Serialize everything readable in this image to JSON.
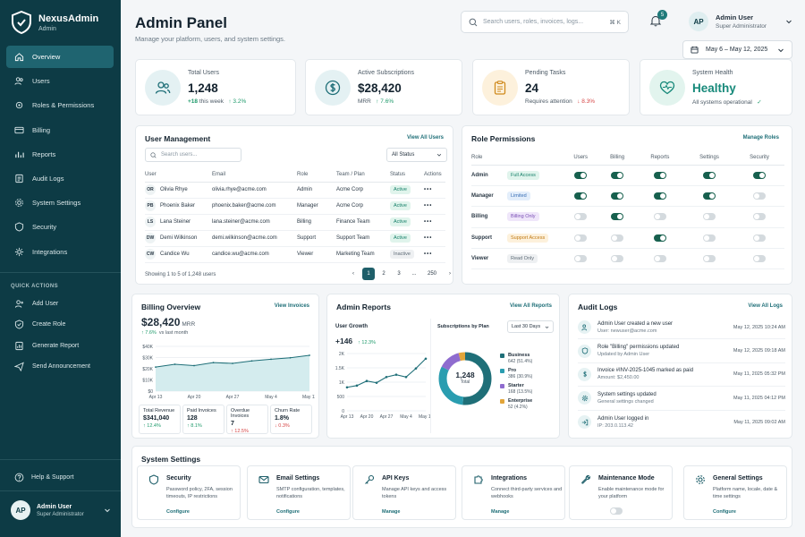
{
  "brand": {
    "name": "NexusAdmin",
    "sub": "Admin"
  },
  "nav": [
    {
      "label": "Overview",
      "icon": "home-icon"
    },
    {
      "label": "Users",
      "icon": "users-icon"
    },
    {
      "label": "Roles & Permissions",
      "icon": "key-icon"
    },
    {
      "label": "Billing",
      "icon": "card-icon"
    },
    {
      "label": "Reports",
      "icon": "chart-icon"
    },
    {
      "label": "Audit Logs",
      "icon": "log-icon"
    },
    {
      "label": "System Settings",
      "icon": "gear-icon"
    },
    {
      "label": "Security",
      "icon": "shield-icon"
    },
    {
      "label": "Integrations",
      "icon": "plug-icon"
    }
  ],
  "quick_actions": {
    "title": "QUICK ACTIONS",
    "items": [
      {
        "label": "Add User"
      },
      {
        "label": "Create Role"
      },
      {
        "label": "Generate Report"
      },
      {
        "label": "Send Announcement"
      }
    ]
  },
  "help": "Help & Support",
  "user": {
    "initials": "AP",
    "name": "Admin User",
    "role": "Super Administrator"
  },
  "header": {
    "title": "Admin Panel",
    "subtitle": "Manage your platform, users, and system settings.",
    "search_placeholder": "Search users, roles, invoices, logs...",
    "search_kbd": "⌘ K",
    "notifications": "5",
    "date_range": "May 6 – May 12, 2025"
  },
  "stats": [
    {
      "label": "Total Users",
      "value": "1,248",
      "foot_a": "+18",
      "foot_b": "this week",
      "foot_c": "↑ 3.2%"
    },
    {
      "label": "Active Subscriptions",
      "value": "$28,420",
      "foot_a": "MRR",
      "foot_b": "",
      "foot_c": "↑ 7.6%"
    },
    {
      "label": "Pending Tasks",
      "value": "24",
      "foot_a": "Requires attention",
      "foot_b": "",
      "foot_c": "↓ 8.3%"
    },
    {
      "label": "System Health",
      "value": "Healthy",
      "foot_a": "All systems operational",
      "foot_b": "",
      "foot_c": "✓"
    }
  ],
  "user_mgmt": {
    "title": "User Management",
    "link": "View All Users",
    "search_placeholder": "Search users...",
    "status_filter": "All Status",
    "columns": [
      "User",
      "Email",
      "Role",
      "Team / Plan",
      "Status",
      "Actions"
    ],
    "rows": [
      {
        "initials": "OR",
        "name": "Olivia Rhye",
        "email": "olivia.rhye@acme.com",
        "role": "Admin",
        "team": "Acme Corp",
        "status": "Active"
      },
      {
        "initials": "PB",
        "name": "Phoenix Baker",
        "email": "phoenix.baker@acme.com",
        "role": "Manager",
        "team": "Acme Corp",
        "status": "Active"
      },
      {
        "initials": "LS",
        "name": "Lana Steiner",
        "email": "lana.steiner@acme.com",
        "role": "Billing",
        "team": "Finance Team",
        "status": "Active"
      },
      {
        "initials": "DW",
        "name": "Demi Wilkinson",
        "email": "demi.wilkinson@acme.com",
        "role": "Support",
        "team": "Support Team",
        "status": "Active"
      },
      {
        "initials": "CW",
        "name": "Candice Wu",
        "email": "candice.wu@acme.com",
        "role": "Viewer",
        "team": "Marketing Team",
        "status": "Inactive"
      }
    ],
    "footer": "Showing 1 to 5 of 1,248 users",
    "pages": [
      "1",
      "2",
      "3",
      "...",
      "250"
    ]
  },
  "roles": {
    "title": "Role Permissions",
    "link": "Manage Roles",
    "columns": [
      "Role",
      "Users",
      "Billing",
      "Reports",
      "Settings",
      "Security"
    ],
    "rows": [
      {
        "role": "Admin",
        "badge": "Full Access",
        "bg": "#e0f4ec",
        "fg": "#17806a",
        "perms": [
          true,
          true,
          true,
          true,
          true
        ]
      },
      {
        "role": "Manager",
        "badge": "Limited",
        "bg": "#e3eefb",
        "fg": "#3a6fb5",
        "perms": [
          true,
          true,
          true,
          true,
          false
        ]
      },
      {
        "role": "Billing",
        "badge": "Billing Only",
        "bg": "#efe6fa",
        "fg": "#7a4fb5",
        "perms": [
          false,
          true,
          false,
          false,
          false
        ]
      },
      {
        "role": "Support",
        "badge": "Support Access",
        "bg": "#fdf1dc",
        "fg": "#c07a14",
        "perms": [
          false,
          false,
          true,
          false,
          false
        ]
      },
      {
        "role": "Viewer",
        "badge": "Read Only",
        "bg": "#eef0f2",
        "fg": "#5e6b76",
        "perms": [
          false,
          false,
          false,
          false,
          false
        ]
      }
    ]
  },
  "billing": {
    "title": "Billing Overview",
    "link": "View Invoices",
    "value": "$28,420",
    "unit": "MRR",
    "change": "↑ 7.6%",
    "change_note": "vs last month",
    "minis": [
      {
        "label": "Total Revenue",
        "value": "$341,040",
        "change": "↑ 12.4%",
        "dir": "up"
      },
      {
        "label": "Paid Invoices",
        "value": "128",
        "change": "↑ 8.1%",
        "dir": "up"
      },
      {
        "label": "Overdue Invoices",
        "value": "7",
        "change": "↑ 12.5%",
        "dir": "down"
      },
      {
        "label": "Churn Rate",
        "value": "1.8%",
        "change": "↓ 0.3%",
        "dir": "down"
      }
    ]
  },
  "reports": {
    "title": "Admin Reports",
    "link": "View All Reports",
    "growth_title": "User Growth",
    "growth_value": "+146",
    "growth_change": "↑ 12.3%",
    "subs_title": "Subscriptions by Plan",
    "subs_filter": "Last 30 Days",
    "donut_value": "1,248",
    "donut_label": "Total",
    "plans": [
      {
        "name": "Business",
        "value": "642 (51.4%)",
        "share": 51.4,
        "color": "#1f6f78"
      },
      {
        "name": "Pro",
        "value": "386 (30.9%)",
        "share": 30.9,
        "color": "#2a9db0"
      },
      {
        "name": "Starter",
        "value": "168 (13.5%)",
        "share": 13.5,
        "color": "#8f6ccf"
      },
      {
        "name": "Enterprise",
        "value": "52 (4.2%)",
        "share": 4.2,
        "color": "#e2a53a"
      }
    ]
  },
  "chart_data": [
    {
      "type": "area",
      "title": "Billing Overview",
      "x": [
        "Apr 13",
        "Apr 16",
        "Apr 20",
        "Apr 23",
        "Apr 27",
        "Apr 30",
        "May 4",
        "May 7",
        "May 11"
      ],
      "values": [
        21500,
        24000,
        22800,
        25500,
        24800,
        27000,
        28500,
        29800,
        32000
      ],
      "ytick_labels": [
        "$40K",
        "$30K",
        "$20K",
        "$10K",
        "$0"
      ],
      "xtick_labels": [
        "Apr 13",
        "Apr 20",
        "Apr 27",
        "May 4",
        "May 11"
      ],
      "ylim": [
        0,
        40000
      ]
    },
    {
      "type": "line",
      "title": "User Growth",
      "x": [
        "Apr 13",
        "Apr 17",
        "Apr 20",
        "Apr 24",
        "Apr 27",
        "May 1",
        "May 4",
        "May 8",
        "May 11"
      ],
      "values": [
        820,
        880,
        1040,
        980,
        1180,
        1260,
        1180,
        1480,
        1820
      ],
      "ytick_labels": [
        "2K",
        "1.5K",
        "1K",
        "500",
        "0"
      ],
      "xtick_labels": [
        "Apr 13",
        "Apr 20",
        "Apr 27",
        "May 4",
        "May 11"
      ],
      "ylim": [
        0,
        2000
      ]
    },
    {
      "type": "pie",
      "title": "Subscriptions by Plan",
      "categories": [
        "Business",
        "Pro",
        "Starter",
        "Enterprise"
      ],
      "values": [
        642,
        386,
        168,
        52
      ]
    }
  ],
  "audit": {
    "title": "Audit Logs",
    "link": "View All Logs",
    "items": [
      {
        "title": "Admin User created a new user",
        "sub": "User: newuser@acme.com",
        "time": "May 12, 2025  10:24 AM"
      },
      {
        "title": "Role \"Billing\" permissions updated",
        "sub": "Updated by Admin User",
        "time": "May 12, 2025  09:18 AM"
      },
      {
        "title": "Invoice #INV-2025-1045 marked as paid",
        "sub": "Amount: $2,450.00",
        "time": "May 11, 2025  05:32 PM"
      },
      {
        "title": "System settings updated",
        "sub": "General settings changed",
        "time": "May 11, 2025  04:12 PM"
      },
      {
        "title": "Admin User logged in",
        "sub": "IP: 203.0.113.42",
        "time": "May 11, 2025  09:02 AM"
      }
    ]
  },
  "settings": {
    "title": "System Settings",
    "tiles": [
      {
        "name": "Security",
        "desc": "Password policy, 2FA, session timeouts, IP restrictions",
        "action": "Configure"
      },
      {
        "name": "Email Settings",
        "desc": "SMTP configuration, templates, notifications",
        "action": "Configure"
      },
      {
        "name": "API Keys",
        "desc": "Manage API keys and access tokens",
        "action": "Manage"
      },
      {
        "name": "Integrations",
        "desc": "Connect third-party services and webhooks",
        "action": "Manage"
      },
      {
        "name": "Maintenance Mode",
        "desc": "Enable maintenance mode for your platform",
        "action": ""
      },
      {
        "name": "General Settings",
        "desc": "Platform name, locale, date & time settings",
        "action": "Configure"
      }
    ]
  }
}
